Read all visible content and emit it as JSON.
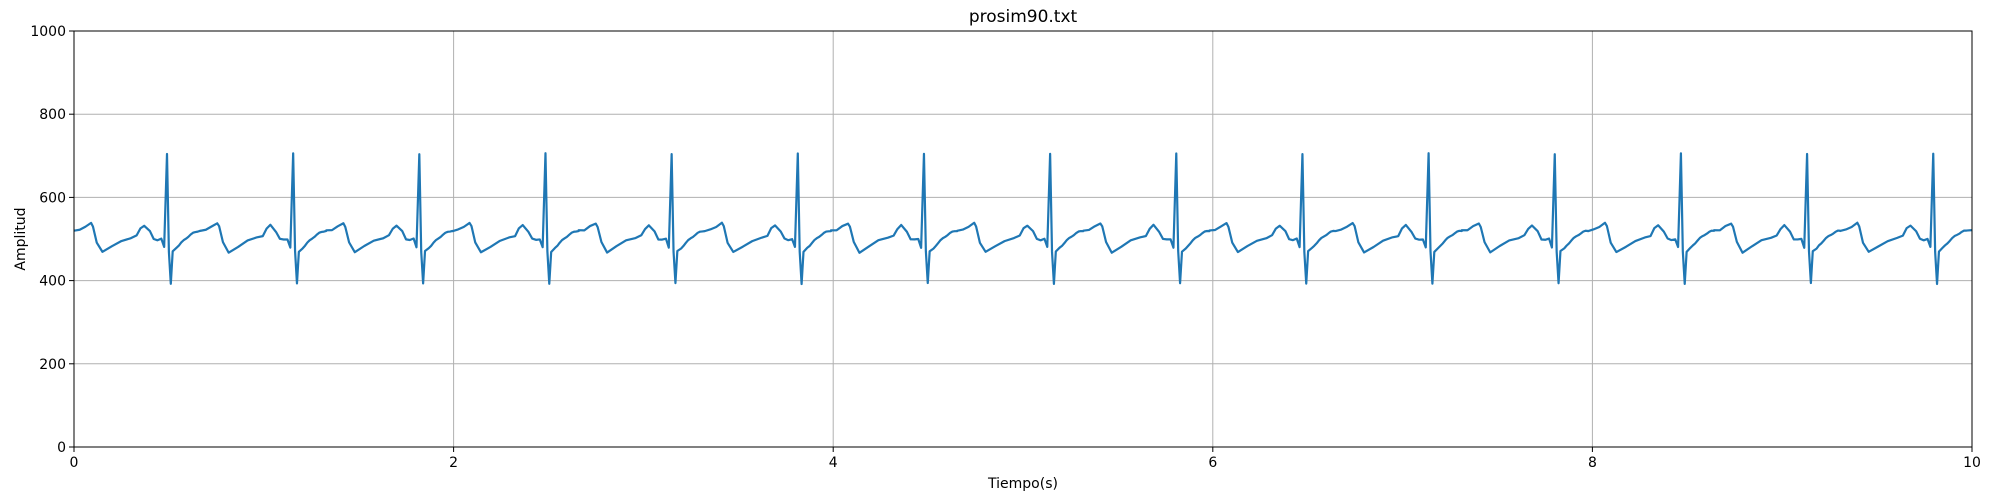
{
  "chart_data": {
    "type": "line",
    "title": "prosim90.txt",
    "xlabel": "Tiempo(s)",
    "ylabel": "Amplitud",
    "xlim": [
      0,
      10
    ],
    "ylim": [
      0,
      1000
    ],
    "xticks": [
      0,
      2,
      4,
      6,
      8,
      10
    ],
    "yticks": [
      0,
      200,
      400,
      600,
      800,
      1000
    ],
    "xtick_labels": [
      "0",
      "2",
      "4",
      "6",
      "8",
      "10"
    ],
    "ytick_labels": [
      "0",
      "200",
      "400",
      "600",
      "800",
      "1000"
    ],
    "grid": true,
    "series_color": "#1f77b4",
    "series": [
      {
        "beat_period": 0.6647,
        "first_r_peak": 0.49,
        "baseline": 495,
        "r_peak": 705,
        "s_trough": 393,
        "p_peak": 532,
        "t_peak": 538,
        "post_s_level": 465,
        "x": [
          0,
          0.03,
          0.06,
          0.09,
          0.1,
          0.12,
          0.15,
          0.2,
          0.25,
          0.3,
          0.33,
          0.35,
          0.37,
          0.4,
          0.42,
          0.44,
          0.46,
          0.475,
          0.49,
          0.5,
          0.51,
          0.52,
          0.54
        ],
        "y": [
          520,
          522,
          530,
          538,
          530,
          492,
          468,
          482,
          496,
          503,
          508,
          525,
          533,
          518,
          500,
          498,
          500,
          480,
          705,
          470,
          393,
          470,
          478
        ]
      }
    ]
  }
}
